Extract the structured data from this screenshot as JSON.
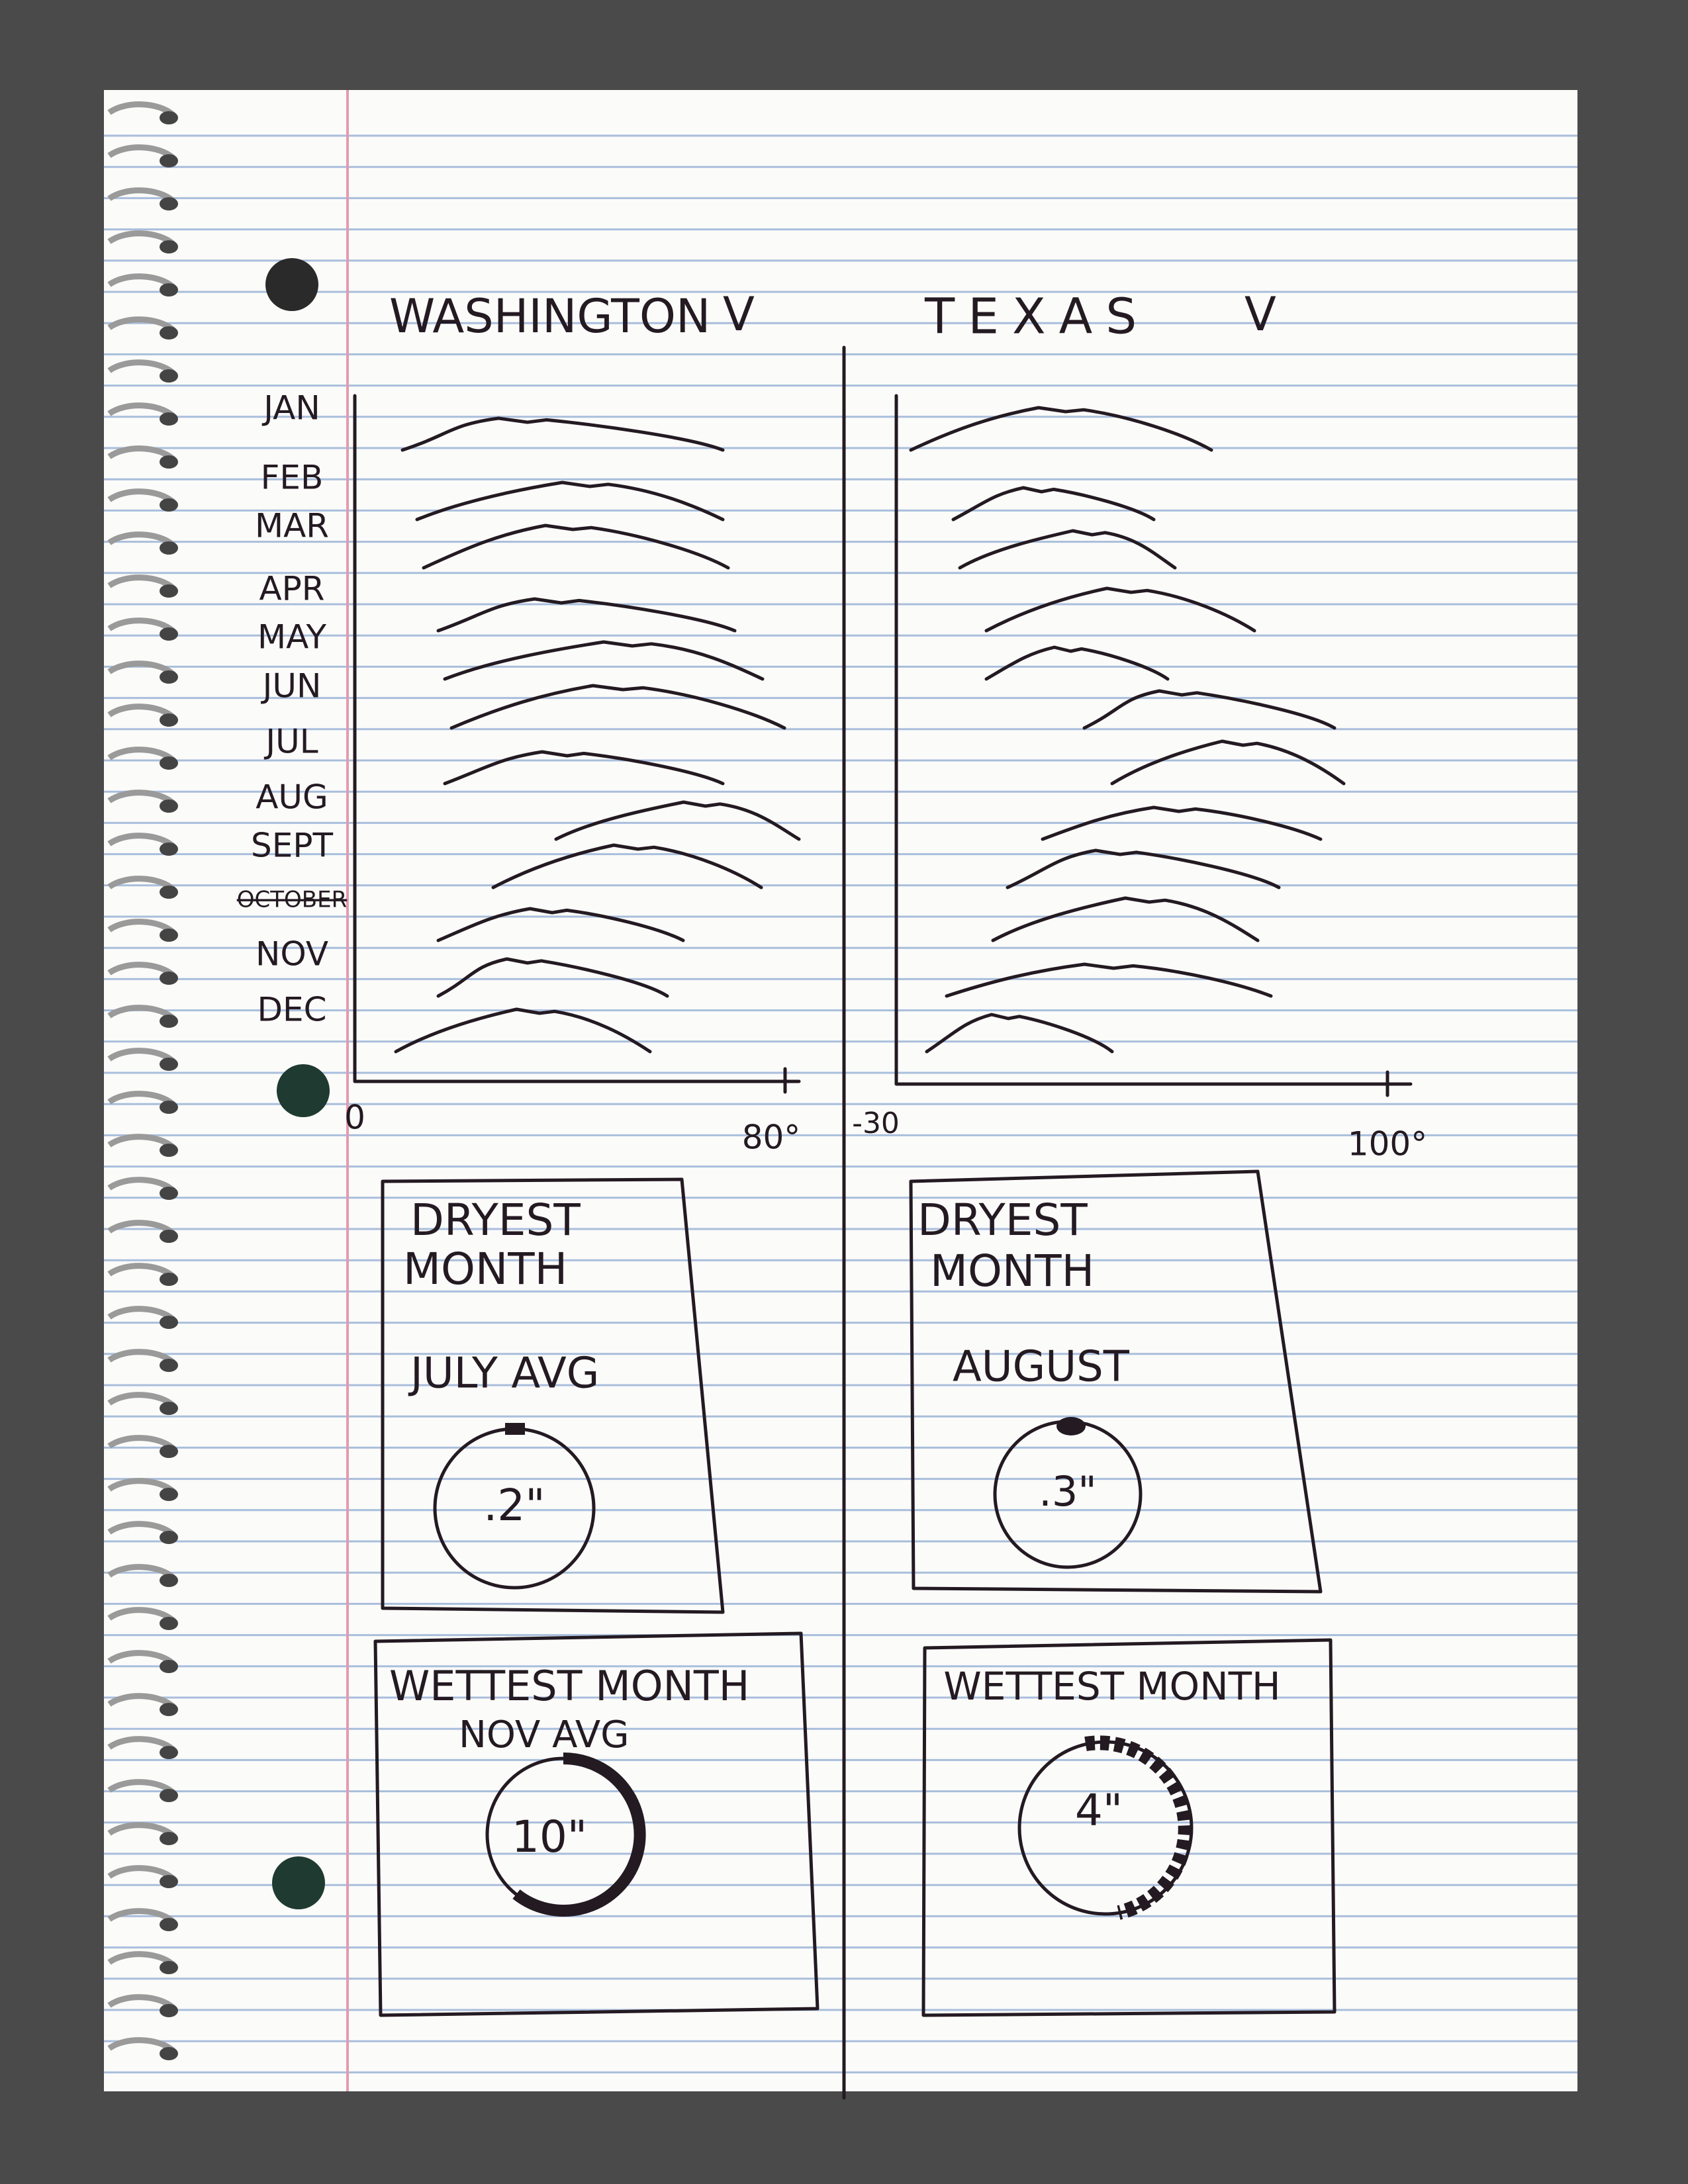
{
  "panels": [
    {
      "state": "WASHINGTON",
      "dropdown": "V",
      "axis_min": "0",
      "axis_max": "80°",
      "dryest": {
        "title_lines": [
          "DRYEST",
          "MONTH"
        ],
        "month": "JULY AVG",
        "amount": ".2\""
      },
      "wettest": {
        "title": "WETTEST MONTH",
        "month": "NOV AVG",
        "amount": "10\""
      }
    },
    {
      "state": "TEXAS",
      "dropdown": "V",
      "axis_min": "-30",
      "axis_max": "100°",
      "dryest": {
        "title_lines": [
          "DRYEST",
          "MONTH"
        ],
        "month": "AUGUST",
        "amount": ".3\""
      },
      "wettest": {
        "title": "WETTEST MONTH",
        "amount": "4\""
      }
    }
  ],
  "months": [
    "JAN",
    "FEB",
    "MAR",
    "APR",
    "MAY",
    "JUN",
    "JUL",
    "AUG",
    "SEPT",
    "OCTOBER",
    "NOV",
    "DEC"
  ]
}
